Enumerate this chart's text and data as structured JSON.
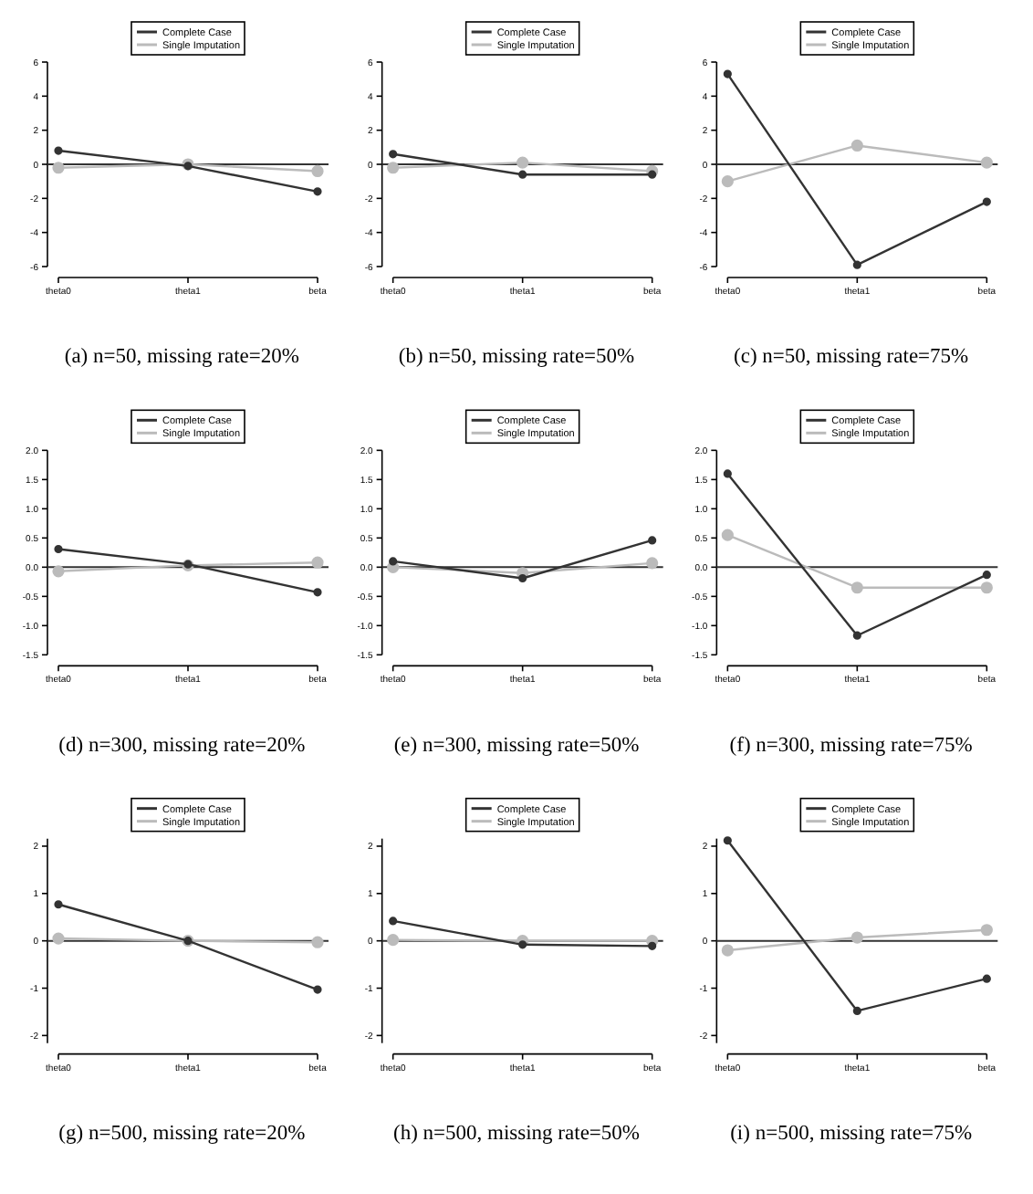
{
  "chart_data": [
    {
      "type": "line",
      "title": "(a) n=50, missing rate=20%",
      "categories": [
        "theta0",
        "theta1",
        "beta"
      ],
      "ylim": [
        -6,
        6
      ],
      "yticks": [
        -6,
        -4,
        -2,
        0,
        2,
        4,
        6
      ],
      "legend": "top",
      "marker": "circle",
      "ref_lines": [
        {
          "axis": "y",
          "value": 0,
          "color": "#333333"
        }
      ],
      "series": [
        {
          "name": "Complete Case",
          "color": "#333333",
          "values": [
            0.8,
            -0.1,
            -1.6
          ]
        },
        {
          "name": "Single Imputation",
          "color": "#bbbbbb",
          "values": [
            -0.2,
            0.0,
            -0.4
          ]
        }
      ]
    },
    {
      "type": "line",
      "title": "(b) n=50, missing rate=50%",
      "categories": [
        "theta0",
        "theta1",
        "beta"
      ],
      "ylim": [
        -6,
        6
      ],
      "yticks": [
        -6,
        -4,
        -2,
        0,
        2,
        4,
        6
      ],
      "legend": "top",
      "marker": "circle",
      "ref_lines": [
        {
          "axis": "y",
          "value": 0,
          "color": "#333333"
        }
      ],
      "series": [
        {
          "name": "Complete Case",
          "color": "#333333",
          "values": [
            0.6,
            -0.6,
            -0.6
          ]
        },
        {
          "name": "Single Imputation",
          "color": "#bbbbbb",
          "values": [
            -0.2,
            0.1,
            -0.4
          ]
        }
      ]
    },
    {
      "type": "line",
      "title": "(c) n=50, missing rate=75%",
      "categories": [
        "theta0",
        "theta1",
        "beta"
      ],
      "ylim": [
        -6,
        6
      ],
      "yticks": [
        -6,
        -4,
        -2,
        0,
        2,
        4,
        6
      ],
      "legend": "top",
      "marker": "circle",
      "ref_lines": [
        {
          "axis": "y",
          "value": 0,
          "color": "#333333"
        }
      ],
      "series": [
        {
          "name": "Complete Case",
          "color": "#333333",
          "values": [
            5.3,
            -5.9,
            -2.2
          ]
        },
        {
          "name": "Single Imputation",
          "color": "#bbbbbb",
          "values": [
            -1.0,
            1.1,
            0.1
          ]
        }
      ]
    },
    {
      "type": "line",
      "title": "(d) n=300, missing rate=20%",
      "categories": [
        "theta0",
        "theta1",
        "beta"
      ],
      "ylim": [
        -1.5,
        2
      ],
      "yticks": [
        -1.5,
        {
          "value": -1,
          "label": "-1.0"
        },
        -0.5,
        {
          "value": 0,
          "label": "0.0"
        },
        0.5,
        {
          "value": 1,
          "label": "1.0"
        },
        1.5,
        {
          "value": 2,
          "label": "2.0"
        }
      ],
      "legend": "top",
      "marker": "circle",
      "ref_lines": [
        {
          "axis": "y",
          "value": 0,
          "color": "#333333"
        }
      ],
      "series": [
        {
          "name": "Complete Case",
          "color": "#333333",
          "values": [
            0.31,
            0.05,
            -0.43
          ]
        },
        {
          "name": "Single Imputation",
          "color": "#bbbbbb",
          "values": [
            -0.07,
            0.03,
            0.08
          ]
        }
      ]
    },
    {
      "type": "line",
      "title": "(e) n=300, missing rate=50%",
      "categories": [
        "theta0",
        "theta1",
        "beta"
      ],
      "ylim": [
        -1.5,
        2
      ],
      "yticks": [
        -1.5,
        {
          "value": -1,
          "label": "-1.0"
        },
        -0.5,
        {
          "value": 0,
          "label": "0.0"
        },
        0.5,
        {
          "value": 1,
          "label": "1.0"
        },
        1.5,
        {
          "value": 2,
          "label": "2.0"
        }
      ],
      "legend": "top",
      "marker": "circle",
      "ref_lines": [
        {
          "axis": "y",
          "value": 0,
          "color": "#333333"
        }
      ],
      "series": [
        {
          "name": "Complete Case",
          "color": "#333333",
          "values": [
            0.1,
            -0.19,
            0.46
          ]
        },
        {
          "name": "Single Imputation",
          "color": "#bbbbbb",
          "values": [
            0.0,
            -0.1,
            0.07
          ]
        }
      ]
    },
    {
      "type": "line",
      "title": "(f) n=300, missing rate=75%",
      "categories": [
        "theta0",
        "theta1",
        "beta"
      ],
      "ylim": [
        -1.5,
        2
      ],
      "yticks": [
        -1.5,
        {
          "value": -1,
          "label": "-1.0"
        },
        -0.5,
        {
          "value": 0,
          "label": "0.0"
        },
        0.5,
        {
          "value": 1,
          "label": "1.0"
        },
        1.5,
        {
          "value": 2,
          "label": "2.0"
        }
      ],
      "legend": "top",
      "marker": "circle",
      "ref_lines": [
        {
          "axis": "y",
          "value": 0,
          "color": "#333333"
        }
      ],
      "series": [
        {
          "name": "Complete Case",
          "color": "#333333",
          "values": [
            1.6,
            -1.17,
            -0.13
          ]
        },
        {
          "name": "Single Imputation",
          "color": "#bbbbbb",
          "values": [
            0.55,
            -0.35,
            -0.35
          ]
        }
      ]
    },
    {
      "type": "line",
      "title": "(g) n=500, missing rate=20%",
      "categories": [
        "theta0",
        "theta1",
        "beta"
      ],
      "ylim": [
        -2.16,
        2.16
      ],
      "yticks": [
        -2,
        -1,
        0,
        1,
        2
      ],
      "legend": "top",
      "marker": "circle",
      "ref_lines": [
        {
          "axis": "y",
          "value": 0,
          "color": "#333333"
        }
      ],
      "series": [
        {
          "name": "Complete Case",
          "color": "#333333",
          "values": [
            0.77,
            0.0,
            -1.03
          ]
        },
        {
          "name": "Single Imputation",
          "color": "#bbbbbb",
          "values": [
            0.05,
            0.0,
            -0.03
          ]
        }
      ]
    },
    {
      "type": "line",
      "title": "(h) n=500, missing rate=50%",
      "categories": [
        "theta0",
        "theta1",
        "beta"
      ],
      "ylim": [
        -2.16,
        2.16
      ],
      "yticks": [
        -2,
        -1,
        0,
        1,
        2
      ],
      "legend": "top",
      "marker": "circle",
      "ref_lines": [
        {
          "axis": "y",
          "value": 0,
          "color": "#333333"
        }
      ],
      "series": [
        {
          "name": "Complete Case",
          "color": "#333333",
          "values": [
            0.42,
            -0.08,
            -0.11
          ]
        },
        {
          "name": "Single Imputation",
          "color": "#bbbbbb",
          "values": [
            0.02,
            0.0,
            0.0
          ]
        }
      ]
    },
    {
      "type": "line",
      "title": "(i) n=500, missing rate=75%",
      "categories": [
        "theta0",
        "theta1",
        "beta"
      ],
      "ylim": [
        -2.16,
        2.16
      ],
      "yticks": [
        -2,
        -1,
        0,
        1,
        2
      ],
      "legend": "top",
      "marker": "circle",
      "ref_lines": [
        {
          "axis": "y",
          "value": 0,
          "color": "#333333"
        }
      ],
      "series": [
        {
          "name": "Complete Case",
          "color": "#333333",
          "values": [
            2.12,
            -1.48,
            -0.8
          ]
        },
        {
          "name": "Single Imputation",
          "color": "#bbbbbb",
          "values": [
            -0.2,
            0.07,
            0.23
          ]
        }
      ]
    }
  ]
}
